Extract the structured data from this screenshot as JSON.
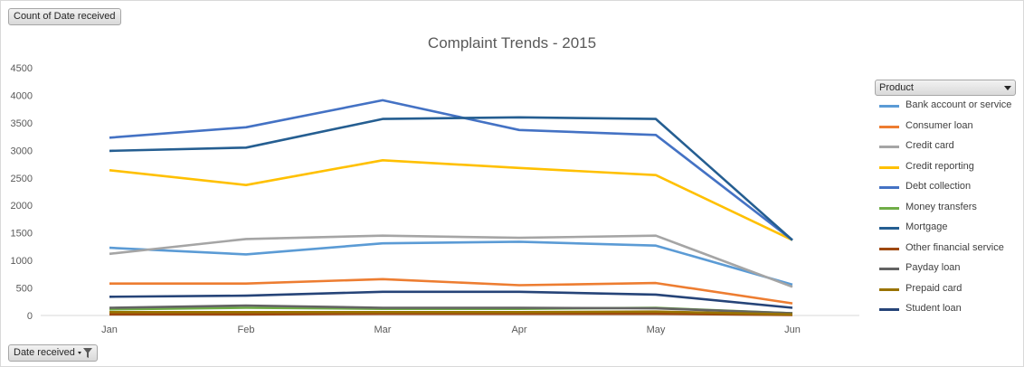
{
  "pivot": {
    "value_field_label": "Count of Date received",
    "axis_field_label": "Date received",
    "legend_field_label": "Product"
  },
  "chart_data": {
    "type": "line",
    "title": "Complaint Trends - 2015",
    "xlabel": "",
    "ylabel": "",
    "categories": [
      "Jan",
      "Feb",
      "Mar",
      "Apr",
      "May",
      "Jun"
    ],
    "ylim": [
      0,
      4500
    ],
    "yticks": [
      0,
      500,
      1000,
      1500,
      2000,
      2500,
      3000,
      3500,
      4000,
      4500
    ],
    "grid": false,
    "legend_placement": "right",
    "series": [
      {
        "name": "Bank account or service",
        "color": "#5b9bd5",
        "values": [
          1230,
          1110,
          1310,
          1340,
          1270,
          560
        ]
      },
      {
        "name": "Consumer loan",
        "color": "#ed7d31",
        "values": [
          580,
          580,
          660,
          550,
          590,
          220
        ]
      },
      {
        "name": "Credit card",
        "color": "#a5a5a5",
        "values": [
          1120,
          1390,
          1450,
          1410,
          1450,
          520
        ]
      },
      {
        "name": "Credit reporting",
        "color": "#ffc000",
        "values": [
          2640,
          2370,
          2820,
          2680,
          2550,
          1370
        ]
      },
      {
        "name": "Debt collection",
        "color": "#4472c4",
        "values": [
          3230,
          3420,
          3910,
          3370,
          3280,
          1370
        ]
      },
      {
        "name": "Money transfers",
        "color": "#70ad47",
        "values": [
          110,
          140,
          120,
          120,
          140,
          40
        ]
      },
      {
        "name": "Mortgage",
        "color": "#255e91",
        "values": [
          2990,
          3050,
          3570,
          3600,
          3570,
          1370
        ]
      },
      {
        "name": "Other financial service",
        "color": "#9e480e",
        "values": [
          20,
          20,
          30,
          30,
          30,
          10
        ]
      },
      {
        "name": "Payday loan",
        "color": "#636363",
        "values": [
          140,
          180,
          140,
          140,
          130,
          40
        ]
      },
      {
        "name": "Prepaid card",
        "color": "#997300",
        "values": [
          60,
          60,
          60,
          60,
          70,
          20
        ]
      },
      {
        "name": "Student loan",
        "color": "#264478",
        "values": [
          340,
          360,
          430,
          430,
          380,
          140
        ]
      }
    ]
  }
}
